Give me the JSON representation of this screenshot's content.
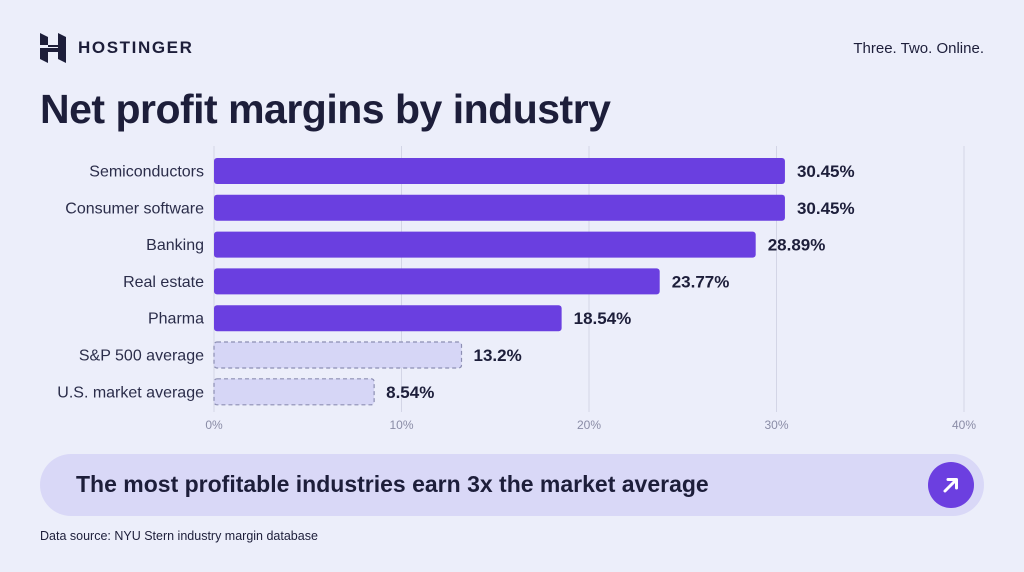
{
  "header": {
    "brand": "HOSTINGER",
    "tagline": "Three. Two. Online."
  },
  "title": "Net profit margins by industry",
  "chart_data": {
    "type": "bar",
    "orientation": "horizontal",
    "categories": [
      "Semiconductors",
      "Consumer software",
      "Banking",
      "Real estate",
      "Pharma",
      "S&P 500 average",
      "U.S. market average"
    ],
    "values": [
      30.45,
      30.45,
      28.89,
      23.77,
      18.54,
      13.2,
      8.54
    ],
    "value_labels": [
      "30.45%",
      "30.45%",
      "28.89%",
      "23.77%",
      "18.54%",
      "13.2%",
      "8.54%"
    ],
    "bar_styles": [
      "industry",
      "industry",
      "industry",
      "industry",
      "industry",
      "average",
      "average"
    ],
    "x_ticks": [
      0,
      10,
      20,
      30,
      40
    ],
    "x_tick_labels": [
      "0%",
      "10%",
      "20%",
      "30%",
      "40%"
    ],
    "xlim": [
      0,
      40
    ],
    "grid": true,
    "colors": {
      "industry": "#6a3fe0",
      "average_fill": "#d6d6f6",
      "average_border": "#8d8fb3",
      "gridline": "#d3d5e6"
    }
  },
  "banner": {
    "text": "The most profitable industries earn 3x the market average",
    "icon": "arrow-up-right-icon"
  },
  "footer": {
    "source": "Data source: NYU Stern industry margin database"
  }
}
